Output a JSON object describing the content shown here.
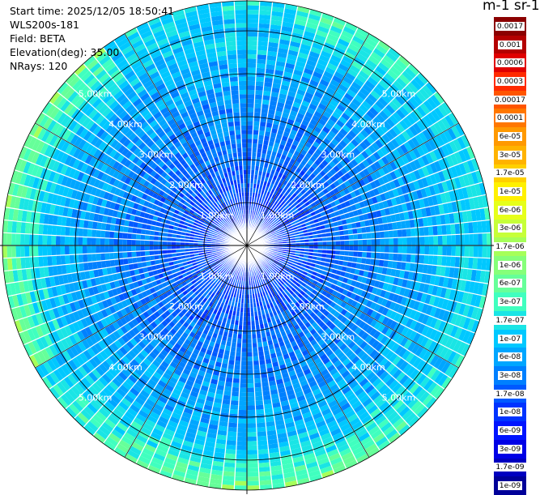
{
  "info": {
    "start_time": "Start time: 2025/12/05 18:50:41",
    "instrument": "WLS200s-181",
    "field": "Field: BETA",
    "elevation": "Elevation(deg): 35.00",
    "nrays": "NRays: 120"
  },
  "unit_title": "m-1 sr-1",
  "range_ring_labels": [
    "1.00km",
    "2.00km",
    "3.00km",
    "4.00km",
    "5.00km"
  ],
  "colorbar": {
    "labels": [
      "0.0017",
      "0.001",
      "0.0006",
      "0.0003",
      "0.00017",
      "0.0001",
      "6e-05",
      "3e-05",
      "1.7e-05",
      "1e-05",
      "6e-06",
      "3e-06",
      "1.7e-06",
      "1e-06",
      "6e-07",
      "3e-07",
      "1.7e-07",
      "1e-07",
      "6e-08",
      "3e-08",
      "1.7e-08",
      "1e-08",
      "6e-09",
      "3e-09",
      "1.7e-09",
      "1e-09"
    ],
    "colors": [
      "#8b0000",
      "#b40000",
      "#e00000",
      "#ff2a00",
      "#ff5500",
      "#ff7700",
      "#ff9900",
      "#ffb300",
      "#ffd000",
      "#fff000",
      "#e6ff1a",
      "#c6ff39",
      "#a6ff59",
      "#86ff79",
      "#66ff99",
      "#40ffbf",
      "#1ae5e5",
      "#00c8ff",
      "#00a6ff",
      "#0080ff",
      "#0059ff",
      "#0033ff",
      "#0014ff",
      "#0000e6",
      "#0000c0",
      "#000099"
    ]
  },
  "colors": {
    "background": "#ffffff",
    "grid": "#000000",
    "ray_gap": "#ffffff"
  }
}
